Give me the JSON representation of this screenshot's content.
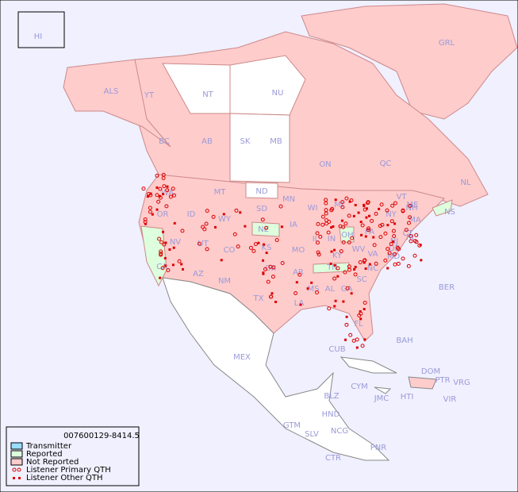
{
  "map": {
    "labels": [
      "HI",
      "ALS",
      "YT",
      "NT",
      "NU",
      "GRL",
      "BC",
      "AB",
      "SK",
      "MB",
      "ON",
      "QC",
      "NL",
      "NS",
      "WA",
      "MT",
      "ND",
      "MN",
      "WI",
      "MI",
      "ME",
      "OR",
      "ID",
      "WY",
      "SD",
      "IA",
      "IL",
      "IN",
      "OH",
      "PA",
      "NY",
      "NH",
      "VT",
      "MA",
      "CT",
      "RI",
      "NJ",
      "DE",
      "MD",
      "NV",
      "UT",
      "CO",
      "NE",
      "KS",
      "MO",
      "KY",
      "WV",
      "VA",
      "CA",
      "AZ",
      "NM",
      "OK",
      "AR",
      "TN",
      "NC",
      "SC",
      "MS",
      "AL",
      "GA",
      "TX",
      "LA",
      "FL",
      "BER",
      "BAH",
      "CUB",
      "MEX",
      "DOM",
      "PTR",
      "VRG",
      "CYM",
      "JMC",
      "HTI",
      "VIR",
      "BLZ",
      "HND",
      "GTM",
      "SLV",
      "NCG",
      "CTR",
      "PNR"
    ]
  },
  "legend": {
    "title": "007600129-8414.5",
    "items": [
      "Transmitter",
      "Reported",
      "Not Reported",
      "Listener Primary QTH",
      "Listener Other QTH"
    ]
  }
}
